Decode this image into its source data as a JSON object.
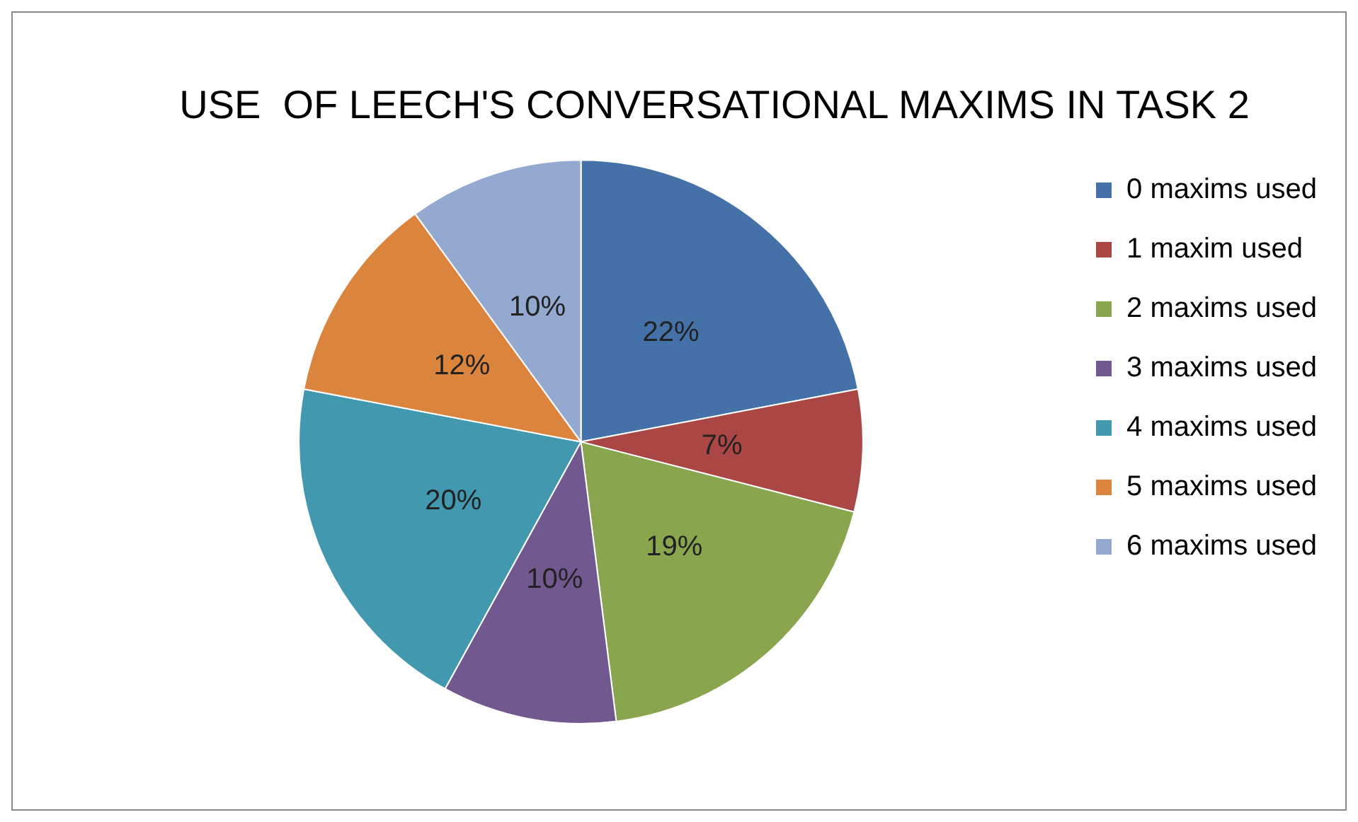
{
  "chart_data": {
    "type": "pie",
    "title": "USE  OF LEECH'S CONVERSATIONAL MAXIMS IN TASK 2",
    "categories": [
      "0 maxims used",
      "1 maxim used",
      "2 maxims used",
      "3 maxims used",
      "4 maxims used",
      "5 maxims used",
      "6 maxims used"
    ],
    "values": [
      22,
      7,
      19,
      10,
      20,
      12,
      10
    ],
    "value_labels": [
      "22%",
      "7%",
      "19%",
      "10%",
      "20%",
      "12%",
      "10%"
    ],
    "colors": [
      "#4472a8",
      "#aa4643",
      "#89a54e",
      "#71588f",
      "#4198af",
      "#db843d",
      "#93a9cf"
    ],
    "legend": "right"
  }
}
